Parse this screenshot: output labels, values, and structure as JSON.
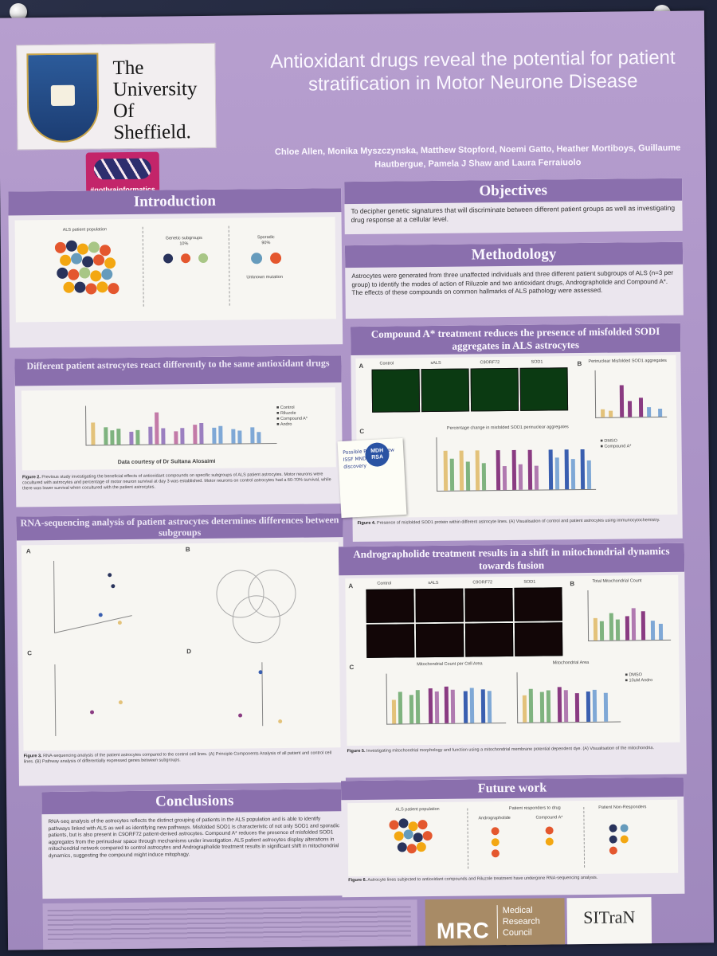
{
  "poster": {
    "university": "The University Of Sheffield.",
    "tag": "#gotbrainformatics",
    "title": "Antioxidant drugs reveal the potential for patient stratification in Motor Neurone Disease",
    "authors": "Chloe Allen, Monika Myszczynska, Matthew Stopford, Noemi Gatto, Heather Mortiboys, Guillaume Hautbergue, Pamela J Shaw and Laura Ferraiuolo"
  },
  "introduction": {
    "heading": "Introduction",
    "population_label": "ALS patient population",
    "genetic_label": "Genetic subgroups",
    "genetic_pct": "10%",
    "sporadic_label": "Sporadic",
    "sporadic_pct": "90%",
    "unknown_label": "Unknown mutation"
  },
  "different_reactions": {
    "heading": "Different patient astrocytes react differently to the same antioxidant drugs",
    "courtesy": "Data courtesy of Dr Sultana Alosaimi"
  },
  "rna_seq": {
    "heading": "RNA-sequencing analysis of patient astrocytes determines differences between subgroups",
    "panel_a": "A",
    "panel_b": "B",
    "panel_c": "C",
    "panel_d": "D"
  },
  "conclusions": {
    "heading": "Conclusions",
    "text": "RNA-seq analysis of the astrocytes reflects the distinct grouping of patients in the ALS population and is able to identify pathways linked with ALS as well as identifying new pathways. Misfolded SOD1 is characteristic of not only SOD1 and sporadic patients, but is also present in C9ORF72 patient-derived astrocytes. Compound A* reduces the presence of misfolded SOD1 aggregates from the perinuclear space through mechanisms under investigation. ALS patient astrocytes display alterations in mitochondrial network compared to control astrocytes and Andrographolide treatment results in significant shift in mitochondrial dynamics, suggesting the compound might induce mitophagy."
  },
  "objectives": {
    "heading": "Objectives",
    "text": "To decipher genetic signatures that will discriminate between different patient groups as well as investigating drug response at a cellular level."
  },
  "methodology": {
    "heading": "Methodology",
    "text": "Astrocytes were generated from three unaffected individuals and three different patient subgroups of ALS (n=3 per group) to identify the modes of action of Riluzole and two antioxidant drugs, Andrographolide and Compound A*. The effects of these compounds on common hallmarks of ALS pathology were assessed."
  },
  "compound_a": {
    "heading": "Compound A* treatment reduces the presence of misfolded SODI aggregates in ALS astrocytes",
    "panel_a": "A",
    "panel_b": "B",
    "panel_c": "C",
    "labels": [
      "Control",
      "sALS",
      "C9ORF72",
      "SOD1"
    ],
    "chart_b_title": "Perinuclear Misfolded SOD1 aggregates",
    "chart_c_title": "Percentage change in misfolded SOD1 perinuclear aggregates",
    "legend": [
      "DMSO",
      "Compound A*"
    ]
  },
  "andrographolide": {
    "heading": "Andrographolide treatment results in a shift in mitochondrial dynamics towards fusion",
    "panel_a": "A",
    "panel_b": "B",
    "panel_c": "C",
    "labels": [
      "Control",
      "sALS",
      "C9ORF72",
      "SOD1"
    ],
    "chart_b_title": "Total Mitochondrial Count",
    "chart_c1_title": "Mitochondrial Count per Cell Area",
    "chart_c2_title": "Mitochondrial Area",
    "legend": [
      "DMSO",
      "10uM Andro"
    ]
  },
  "future_work": {
    "heading": "Future work",
    "population_label": "ALS patient population",
    "responders_label": "Patient responders to drug",
    "andro_label": "Andrographolide",
    "compound_label": "Compound A*",
    "non_responders_label": "Patient Non-Responders"
  },
  "sticky_note": {
    "badge": "MDH RSA",
    "handwriting": "Possible Project? New ISSF MND drug discovery"
  },
  "funders": {
    "mrc": "MRC",
    "mrc_sub": "Medical Research Council",
    "sitran": "SITraN"
  },
  "colors": {
    "accent": "#8a6fad",
    "poster_bg": "#ad95c8",
    "panel_bg": "#f7f6f2"
  }
}
